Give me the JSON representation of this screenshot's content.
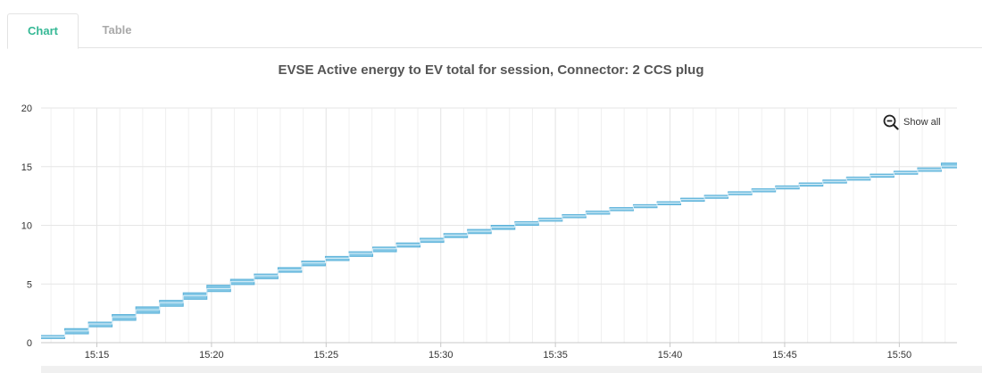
{
  "tabs": [
    {
      "label": "Chart",
      "active": true
    },
    {
      "label": "Table",
      "active": false
    }
  ],
  "show_all": {
    "label": "Show all",
    "icon": "zoom-out-icon"
  },
  "colors": {
    "accent": "#35b895",
    "series": "#6cbde0",
    "grid": "#e6e6e6",
    "axis": "#c8c8c8",
    "tab_inactive": "#a9a9a9"
  },
  "chart_data": {
    "type": "line",
    "step": true,
    "title": "EVSE Active energy to EV total for session, Connector: 2 CCS plug",
    "xlabel": "",
    "ylabel": "",
    "ylim": [
      0,
      20
    ],
    "yticks": [
      0,
      5,
      10,
      15,
      20
    ],
    "xlim": [
      "15:12:34",
      "15:52:31"
    ],
    "xticks": [
      "15:15",
      "15:20",
      "15:25",
      "15:30",
      "15:35",
      "15:40",
      "15:45",
      "15:50"
    ],
    "grid": true,
    "legend": "none",
    "series": [
      {
        "x": [
          "15:12:34",
          "15:13:36",
          "15:14:38",
          "15:15:40",
          "15:16:42",
          "15:17:44",
          "15:18:46",
          "15:19:48",
          "15:20:50",
          "15:21:52",
          "15:22:54",
          "15:23:56",
          "15:24:58",
          "15:26:00",
          "15:27:02",
          "15:28:04",
          "15:29:06",
          "15:30:08",
          "15:31:10",
          "15:32:12",
          "15:33:14",
          "15:34:16",
          "15:35:18",
          "15:36:20",
          "15:37:22",
          "15:38:24",
          "15:39:26",
          "15:40:28",
          "15:41:30",
          "15:42:32",
          "15:43:34",
          "15:44:36",
          "15:45:38",
          "15:46:40",
          "15:47:42",
          "15:48:44",
          "15:49:46",
          "15:50:48",
          "15:51:50"
        ],
        "y": [
          0.5,
          1.0,
          1.6,
          2.2,
          2.8,
          3.4,
          4.0,
          4.6,
          5.2,
          5.7,
          6.2,
          6.8,
          7.2,
          7.6,
          8.0,
          8.35,
          8.75,
          9.15,
          9.5,
          9.85,
          10.2,
          10.5,
          10.8,
          11.1,
          11.4,
          11.65,
          11.9,
          12.2,
          12.45,
          12.75,
          13.0,
          13.25,
          13.5,
          13.75,
          14.0,
          14.25,
          14.5,
          14.75,
          15.05
        ],
        "y_low": [
          0.35,
          0.75,
          1.35,
          1.9,
          2.5,
          3.1,
          3.7,
          4.35,
          4.95,
          5.45,
          6.0,
          6.55,
          7.0,
          7.35,
          7.75,
          8.15,
          8.55,
          8.95,
          9.3,
          9.65,
          10.0,
          10.35,
          10.65,
          10.95,
          11.25,
          11.5,
          11.75,
          12.05,
          12.3,
          12.6,
          12.85,
          13.1,
          13.35,
          13.6,
          13.85,
          14.1,
          14.35,
          14.6,
          14.9
        ],
        "y_high": [
          0.6,
          1.2,
          1.75,
          2.4,
          3.05,
          3.6,
          4.25,
          4.9,
          5.4,
          5.85,
          6.4,
          6.95,
          7.35,
          7.75,
          8.15,
          8.5,
          8.9,
          9.3,
          9.65,
          10.0,
          10.3,
          10.6,
          10.9,
          11.2,
          11.5,
          11.75,
          12.0,
          12.3,
          12.55,
          12.85,
          13.1,
          13.35,
          13.6,
          13.85,
          14.1,
          14.35,
          14.6,
          14.9,
          15.3
        ]
      }
    ]
  }
}
